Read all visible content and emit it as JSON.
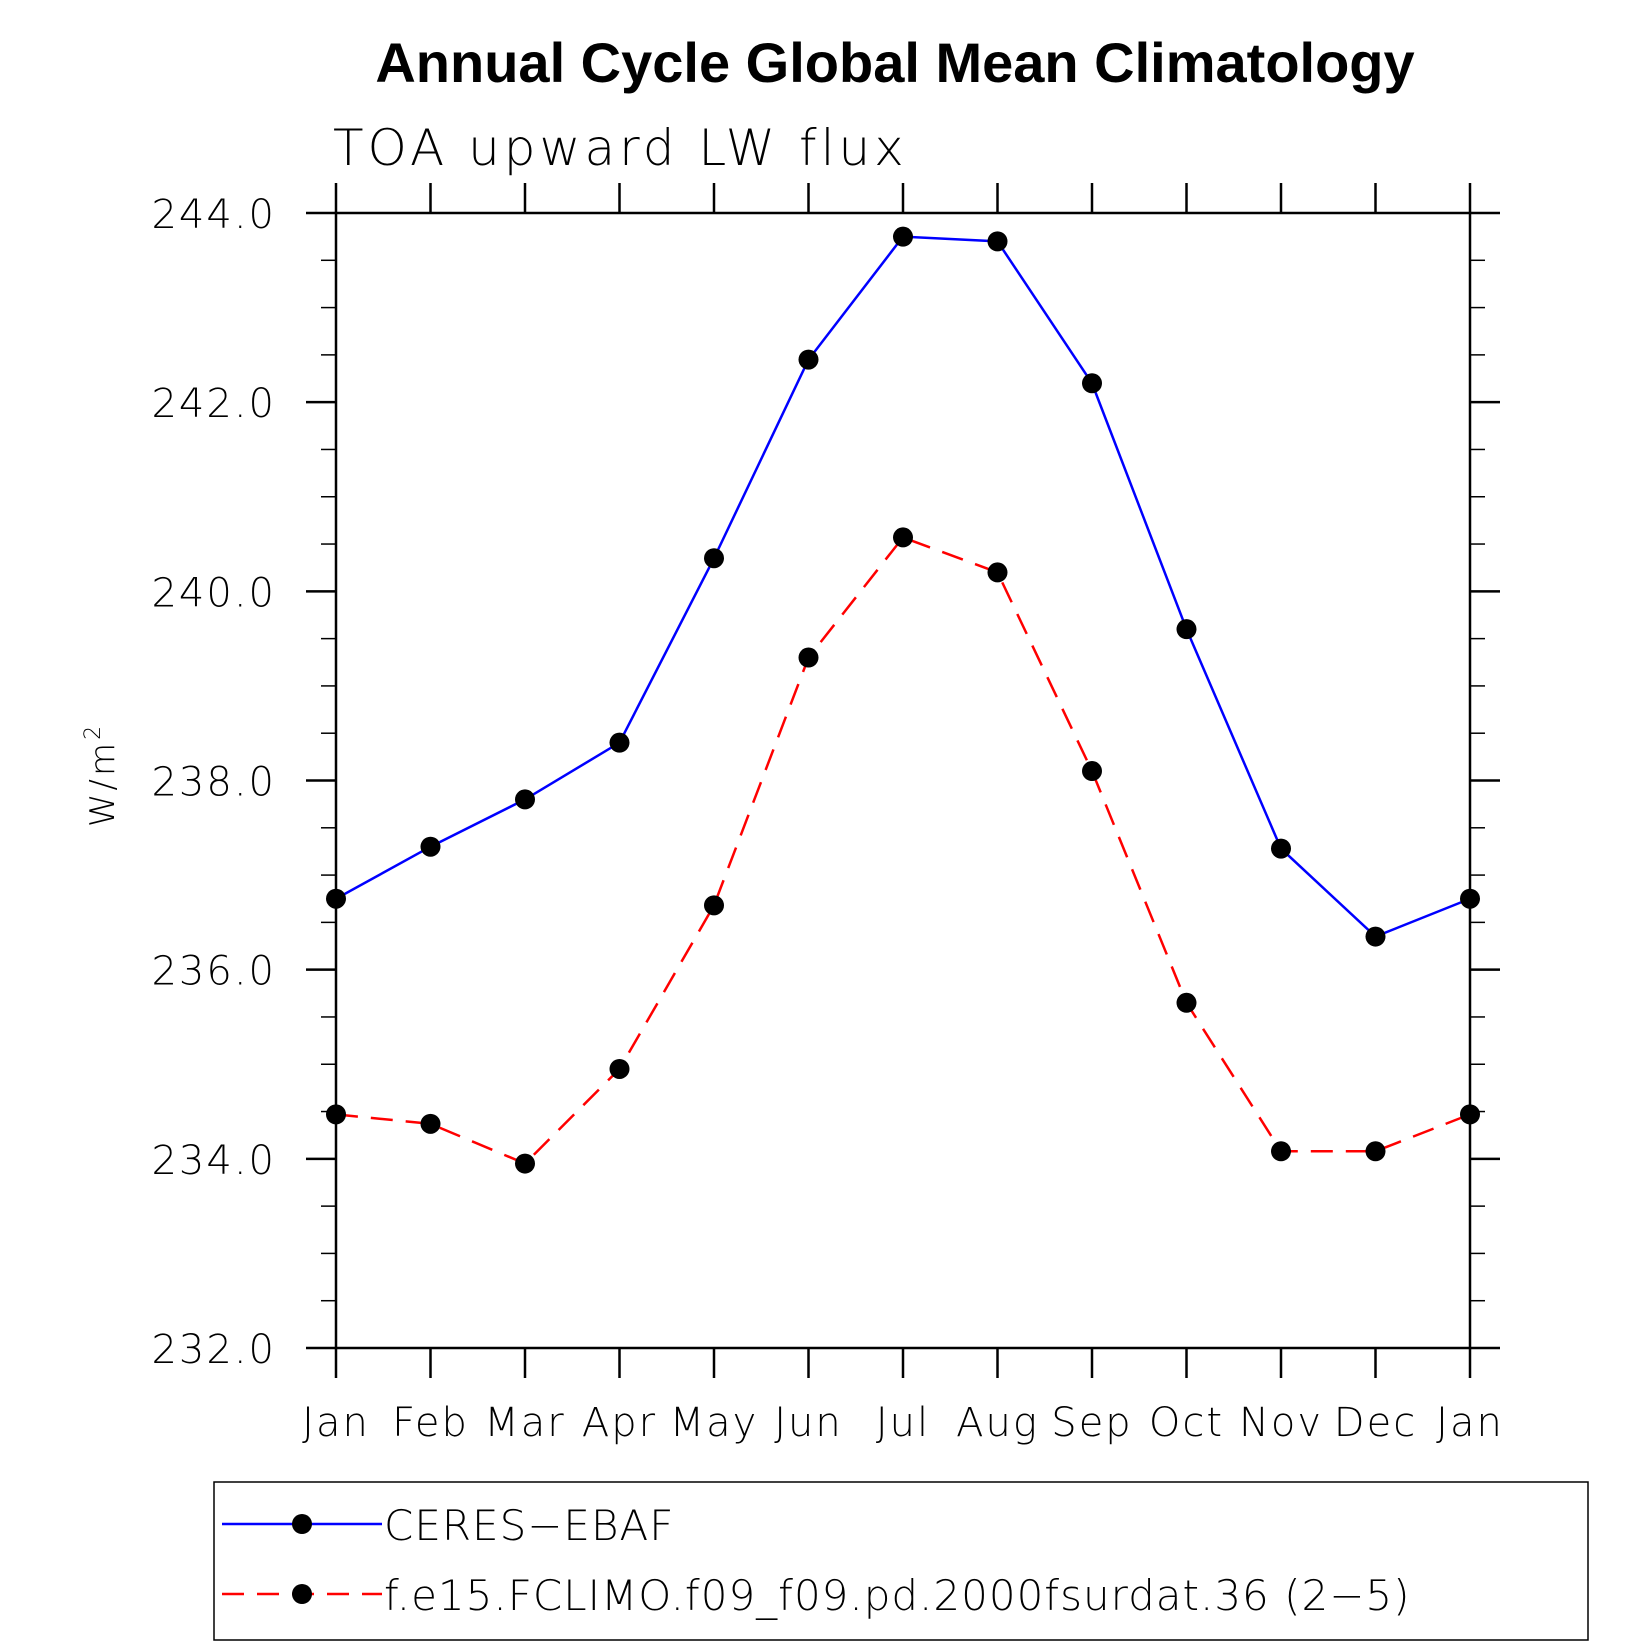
{
  "chart_data": {
    "type": "line",
    "title": "Annual Cycle Global Mean Climatology",
    "subtitle": "TOA upward LW flux",
    "ylabel": "W/m",
    "ylabel_superscript": "2",
    "ylim": [
      232.0,
      244.0
    ],
    "y_major_ticks": [
      232.0,
      234.0,
      236.0,
      238.0,
      240.0,
      242.0,
      244.0
    ],
    "y_tick_labels": [
      "232.0",
      "234.0",
      "236.0",
      "238.0",
      "240.0",
      "242.0",
      "244.0"
    ],
    "y_minor_step": 0.5,
    "categories": [
      "Jan",
      "Feb",
      "Mar",
      "Apr",
      "May",
      "Jun",
      "Jul",
      "Aug",
      "Sep",
      "Oct",
      "Nov",
      "Dec",
      "Jan"
    ],
    "grid": false,
    "legend_position": "bottom",
    "series": [
      {
        "name": "CERES−EBAF",
        "color": "#0000ff",
        "dash": "solid",
        "marker": "filled-circle",
        "values": [
          236.75,
          237.3,
          237.8,
          238.4,
          240.35,
          242.45,
          243.75,
          243.7,
          242.2,
          239.6,
          237.28,
          236.35,
          236.75
        ]
      },
      {
        "name": "f.e15.FCLIMO.f09_f09.pd.2000fsurdat.36 (2−5)",
        "color": "#ff0000",
        "dash": "dashed",
        "marker": "filled-circle",
        "values": [
          234.47,
          234.37,
          233.95,
          234.95,
          236.68,
          239.3,
          240.57,
          240.2,
          238.1,
          235.65,
          234.08,
          234.08,
          234.47
        ]
      }
    ]
  }
}
